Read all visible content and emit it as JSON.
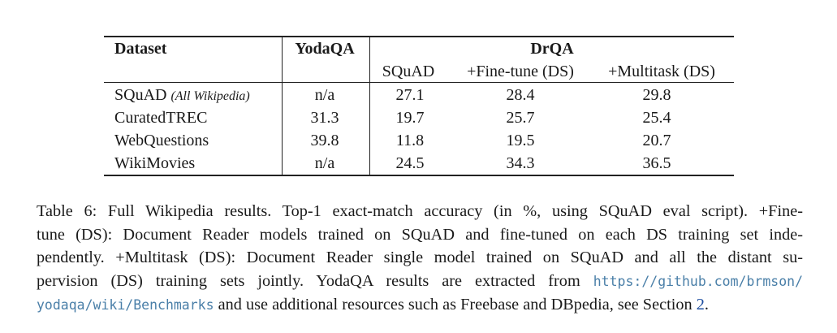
{
  "table": {
    "headers": {
      "dataset": "Dataset",
      "yodaqa": "YodaQA",
      "drqa": "DrQA",
      "drqa_sub": [
        "SQuAD",
        "+Fine-tune (DS)",
        "+Multitask (DS)"
      ]
    },
    "rows": [
      {
        "name": "SQuAD",
        "note": "(All Wikipedia)",
        "yodaqa": "n/a",
        "squad": "27.1",
        "finetune": "28.4",
        "multitask": "29.8"
      },
      {
        "name": "CuratedTREC",
        "note": "",
        "yodaqa": "31.3",
        "squad": "19.7",
        "finetune": "25.7",
        "multitask": "25.4"
      },
      {
        "name": "WebQuestions",
        "note": "",
        "yodaqa": "39.8",
        "squad": "11.8",
        "finetune": "19.5",
        "multitask": "20.7"
      },
      {
        "name": "WikiMovies",
        "note": "",
        "yodaqa": "n/a",
        "squad": "24.5",
        "finetune": "34.3",
        "multitask": "36.5"
      }
    ]
  },
  "caption": {
    "line1": "Table 6:  Full Wikipedia results. Top-1 exact-match accuracy (in %, using SQuAD eval script). +Fine-",
    "line2": "tune (DS): Document Reader models trained on SQuAD and fine-tuned on each DS training set inde-",
    "line3": "pendently. +Multitask (DS): Document Reader single model trained on SQuAD and all the distant su-",
    "line4_text": "pervision (DS) training sets jointly. YodaQA results are extracted from",
    "url_part1": "https://github.com/brmson/",
    "url_part2": "yodaqa/wiki/Benchmarks",
    "line5_text": " and use additional resources such as Freebase and DBpedia, see Section ",
    "section_ref": "2",
    "line5_end": "."
  }
}
